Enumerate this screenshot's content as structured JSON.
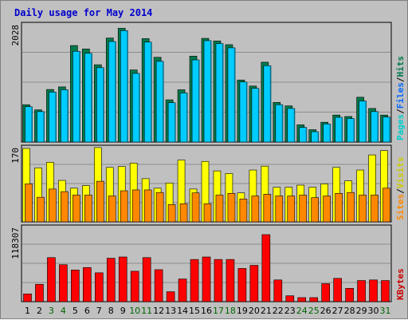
{
  "chart_data": {
    "type": "bar",
    "title": "Daily usage for May 2014",
    "categories": [
      "1",
      "2",
      "3",
      "4",
      "5",
      "6",
      "7",
      "8",
      "9",
      "10",
      "11",
      "12",
      "13",
      "14",
      "15",
      "16",
      "17",
      "18",
      "19",
      "20",
      "21",
      "22",
      "23",
      "24",
      "25",
      "26",
      "27",
      "28",
      "29",
      "30",
      "31"
    ],
    "weekend_days": [
      "3",
      "4",
      "10",
      "11",
      "17",
      "18",
      "24",
      "25",
      "31"
    ],
    "day_label_color": "#000000",
    "weekend_label_color": "#006600",
    "panels": [
      {
        "id": "hits",
        "max_label": "2028",
        "ylim": [
          0,
          2028
        ],
        "legend": [
          "Pages",
          "/",
          "Files",
          "/",
          "Hits"
        ],
        "legend_colors": [
          "#00cccc",
          "#000000",
          "#0066ff",
          "#000000",
          "#007a4a"
        ],
        "series": [
          {
            "name": "Hits",
            "color": "#007a4a",
            "values": [
              650,
              560,
              915,
              960,
              1680,
              1620,
              1345,
              1810,
              1980,
              1255,
              1800,
              1475,
              735,
              910,
              1495,
              1805,
              1760,
              1695,
              1080,
              975,
              1390,
              690,
              630,
              300,
              215,
              345,
              470,
              445,
              780,
              585,
              470
            ]
          },
          {
            "name": "Files",
            "color": "#00ccff",
            "values": [
              615,
              530,
              870,
              910,
              1580,
              1545,
              1295,
              1750,
              1940,
              1195,
              1740,
              1405,
              685,
              855,
              1430,
              1765,
              1715,
              1640,
              1045,
              935,
              1330,
              650,
              585,
              255,
              180,
              315,
              430,
              410,
              715,
              530,
              435
            ]
          },
          {
            "name": "Pages",
            "color": "#00ccff",
            "values": [
              0,
              0,
              0,
              0,
              0,
              0,
              0,
              0,
              0,
              0,
              0,
              0,
              0,
              0,
              0,
              0,
              0,
              0,
              0,
              0,
              0,
              0,
              0,
              0,
              0,
              0,
              0,
              0,
              0,
              0,
              0
            ]
          }
        ]
      },
      {
        "id": "visits",
        "max_label": "170",
        "ylim": [
          0,
          170
        ],
        "legend": [
          "Sites",
          "/",
          "Visits"
        ],
        "legend_colors": [
          "#ff8800",
          "#000000",
          "#cccc00"
        ],
        "series": [
          {
            "name": "Visits",
            "color": "#ffff00",
            "values": [
              170,
              125,
              138,
              96,
              78,
              84,
              172,
              126,
              128,
              136,
              100,
              78,
              90,
              143,
              76,
              140,
              118,
              112,
              67,
              120,
              129,
              80,
              80,
              85,
              80,
              88,
              126,
              95,
              120,
              155,
              165
            ]
          },
          {
            "name": "Sites",
            "color": "#ff8800",
            "values": [
              88,
              57,
              76,
              70,
              62,
              62,
              94,
              60,
              72,
              74,
              74,
              68,
              40,
              42,
              67,
              42,
              62,
              66,
              53,
              60,
              64,
              60,
              60,
              62,
              56,
              60,
              66,
              68,
              62,
              62,
              78
            ]
          }
        ]
      },
      {
        "id": "kbytes",
        "max_label": "118307",
        "ylim": [
          0,
          118307
        ],
        "legend": [
          "KBytes"
        ],
        "legend_colors": [
          "#cc0000"
        ],
        "series": [
          {
            "name": "KBytes",
            "color": "#ff0000",
            "values": [
              12500,
              28000,
              71000,
              59500,
              51000,
              55000,
              46500,
              70000,
              72000,
              49000,
              71000,
              51500,
              16000,
              36500,
              68000,
              72000,
              68000,
              68000,
              53500,
              58500,
              108000,
              35000,
              9500,
              6500,
              6500,
              29000,
              37500,
              21500,
              34000,
              35000,
              34000
            ]
          }
        ]
      }
    ]
  }
}
